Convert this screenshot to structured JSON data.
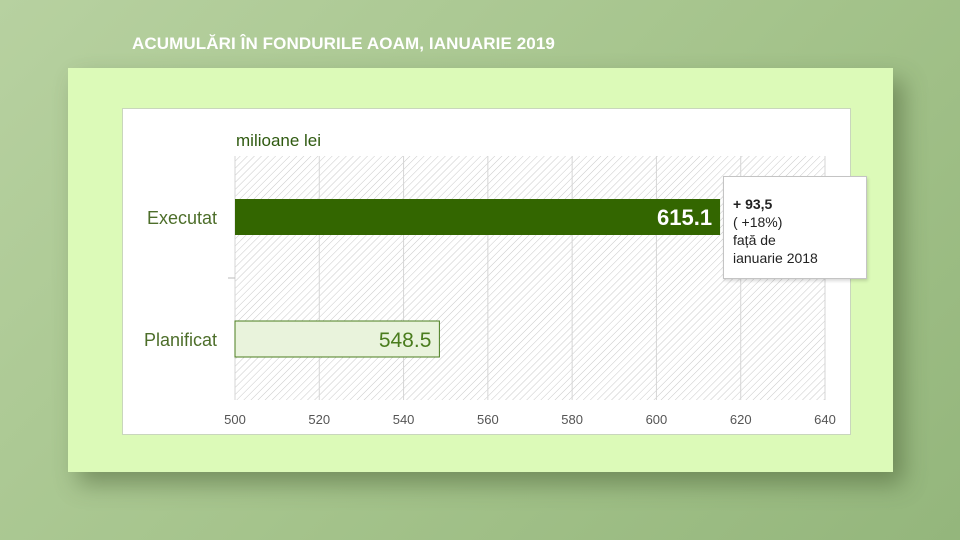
{
  "page": {
    "title": "ACUMULĂRI ÎN FONDURILE AOAM, IANUARIE 2019"
  },
  "chart_data": {
    "type": "bar",
    "orientation": "horizontal",
    "unit_label": "milioane lei",
    "categories": [
      "Executat",
      "Planificat"
    ],
    "values": [
      615.1,
      548.5
    ],
    "value_labels": [
      "615.1",
      "548.5"
    ],
    "xlim": [
      500,
      640
    ],
    "x_ticks": [
      500,
      520,
      540,
      560,
      580,
      600,
      620,
      640
    ],
    "grid": true,
    "colors": {
      "executat_fill": "#336600",
      "planificat_fill": "#e9f3dc",
      "planificat_border": "#4a7c1e",
      "category_text": "#4d6e2a",
      "unit_text": "#2f5a10"
    },
    "annotation": {
      "delta": "+ 93,5",
      "percent": "( +18%)",
      "line3": "față de",
      "line4": "ianuarie 2018"
    }
  }
}
